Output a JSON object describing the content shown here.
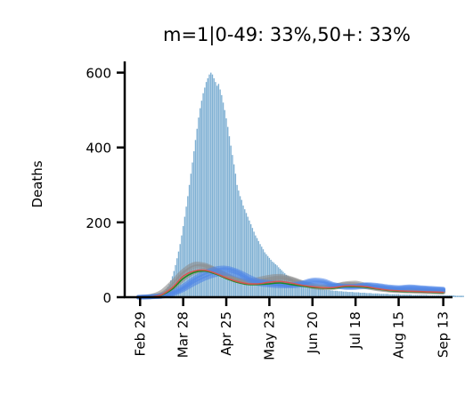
{
  "chart_data": {
    "type": "bar",
    "title": "m=1|0-49: 33%,50+: 33%",
    "xlabel": "",
    "ylabel": "Deaths",
    "ylim": [
      0,
      630
    ],
    "yticks": [
      0,
      200,
      400,
      600
    ],
    "ytick_labels": [
      "0",
      "200",
      "400",
      "600"
    ],
    "xlim": [
      "2020-02-19",
      "2020-09-19"
    ],
    "xticks": [
      "2020-02-29",
      "2020-03-28",
      "2020-04-25",
      "2020-05-23",
      "2020-06-20",
      "2020-07-18",
      "2020-08-15",
      "2020-09-13"
    ],
    "xtick_labels": [
      "Feb 29",
      "Mar 28",
      "Apr 25",
      "May 23",
      "Jun 20",
      "Jul 18",
      "Aug 15",
      "Sep 13"
    ],
    "colors": {
      "bars": "#7fb0d3",
      "green": "#1a8a1a",
      "gray": "#8c8c8c",
      "blue": "#4f86e8",
      "red": "#d9534f"
    },
    "daily_deaths": {
      "start": "2020-03-01",
      "values": [
        0,
        0,
        1,
        1,
        1,
        2,
        2,
        3,
        3,
        4,
        5,
        6,
        8,
        10,
        13,
        17,
        22,
        28,
        35,
        45,
        56,
        70,
        86,
        104,
        122,
        142,
        165,
        190,
        215,
        242,
        270,
        300,
        330,
        360,
        390,
        420,
        450,
        480,
        505,
        525,
        545,
        560,
        575,
        585,
        595,
        600,
        595,
        585,
        575,
        565,
        570,
        555,
        540,
        520,
        500,
        478,
        455,
        430,
        405,
        380,
        355,
        330,
        300,
        285,
        270,
        260,
        245,
        235,
        225,
        215,
        205,
        195,
        185,
        175,
        165,
        158,
        150,
        142,
        135,
        128,
        120,
        115,
        110,
        105,
        100,
        95,
        92,
        88,
        85,
        80,
        76,
        72,
        68,
        64,
        60,
        57,
        54,
        51,
        48,
        45,
        42,
        40,
        38,
        36,
        34,
        33,
        32,
        31,
        30,
        29,
        28,
        27,
        26,
        25,
        24,
        23,
        22,
        21,
        21,
        20,
        20,
        19,
        19,
        18,
        18,
        17,
        17,
        17,
        16,
        16,
        16,
        15,
        15,
        15,
        14,
        14,
        14,
        14,
        13,
        13,
        13,
        13,
        12,
        12,
        12,
        12,
        11,
        11,
        11,
        11,
        10,
        10,
        10,
        10,
        10,
        9,
        9,
        9,
        9,
        9,
        9,
        8,
        8,
        8,
        8,
        8,
        8,
        8,
        7,
        7,
        7,
        7,
        7,
        7,
        7,
        7,
        6,
        6,
        6,
        6,
        6,
        6,
        6,
        6,
        6,
        6,
        5,
        5,
        5,
        5,
        5,
        5,
        5,
        5,
        5,
        5,
        5,
        5,
        5,
        5,
        5,
        5,
        5,
        5,
        4,
        4,
        4,
        4,
        4,
        4
      ]
    },
    "series": [
      {
        "color": "#8c8c8c",
        "dates": [
          "2020-02-28",
          "2020-03-07",
          "2020-03-14",
          "2020-03-21",
          "2020-03-28",
          "2020-04-04",
          "2020-04-11",
          "2020-04-18",
          "2020-04-25",
          "2020-05-02",
          "2020-05-09",
          "2020-05-16",
          "2020-05-23",
          "2020-05-30",
          "2020-06-06",
          "2020-06-13",
          "2020-06-20",
          "2020-06-27",
          "2020-07-04",
          "2020-07-11",
          "2020-07-18",
          "2020-07-25",
          "2020-08-01",
          "2020-08-08",
          "2020-08-15",
          "2020-08-22",
          "2020-08-29",
          "2020-09-05",
          "2020-09-13"
        ],
        "values": [
          0,
          2,
          8,
          30,
          62,
          80,
          82,
          72,
          58,
          46,
          40,
          42,
          48,
          52,
          48,
          38,
          30,
          28,
          30,
          34,
          34,
          30,
          24,
          20,
          18,
          18,
          17,
          16,
          15
        ]
      },
      {
        "color": "#8c8c8c",
        "dates": [
          "2020-02-28",
          "2020-03-07",
          "2020-03-14",
          "2020-03-21",
          "2020-03-28",
          "2020-04-04",
          "2020-04-11",
          "2020-04-18",
          "2020-04-25",
          "2020-05-02",
          "2020-05-09",
          "2020-05-16",
          "2020-05-23",
          "2020-05-30",
          "2020-06-06",
          "2020-06-13",
          "2020-06-20",
          "2020-06-27",
          "2020-07-04",
          "2020-07-11",
          "2020-07-18",
          "2020-07-25",
          "2020-08-01",
          "2020-08-08",
          "2020-08-15",
          "2020-08-22",
          "2020-08-29",
          "2020-09-05",
          "2020-09-13"
        ],
        "values": [
          0,
          3,
          14,
          40,
          70,
          88,
          86,
          74,
          60,
          48,
          44,
          48,
          54,
          56,
          50,
          40,
          32,
          28,
          30,
          36,
          38,
          32,
          26,
          22,
          20,
          19,
          18,
          17,
          16
        ]
      },
      {
        "color": "#8c8c8c",
        "dates": [
          "2020-02-28",
          "2020-03-07",
          "2020-03-14",
          "2020-03-21",
          "2020-03-28",
          "2020-04-04",
          "2020-04-11",
          "2020-04-18",
          "2020-04-25",
          "2020-05-02",
          "2020-05-09",
          "2020-05-16",
          "2020-05-23",
          "2020-05-30",
          "2020-06-06",
          "2020-06-13",
          "2020-06-20",
          "2020-06-27",
          "2020-07-04",
          "2020-07-11",
          "2020-07-18",
          "2020-07-25",
          "2020-08-01",
          "2020-08-08",
          "2020-08-15",
          "2020-08-22",
          "2020-08-29",
          "2020-09-05",
          "2020-09-13"
        ],
        "values": [
          0,
          1,
          6,
          22,
          48,
          66,
          72,
          66,
          54,
          44,
          38,
          38,
          42,
          46,
          44,
          36,
          28,
          25,
          26,
          30,
          30,
          27,
          22,
          19,
          17,
          16,
          15,
          14,
          13
        ]
      },
      {
        "color": "#4f86e8",
        "dates": [
          "2020-02-28",
          "2020-03-07",
          "2020-03-14",
          "2020-03-21",
          "2020-03-28",
          "2020-04-04",
          "2020-04-11",
          "2020-04-18",
          "2020-04-25",
          "2020-05-02",
          "2020-05-09",
          "2020-05-16",
          "2020-05-23",
          "2020-05-30",
          "2020-06-06",
          "2020-06-13",
          "2020-06-20",
          "2020-06-27",
          "2020-07-04",
          "2020-07-11",
          "2020-07-18",
          "2020-07-25",
          "2020-08-01",
          "2020-08-08",
          "2020-08-15",
          "2020-08-22",
          "2020-08-29",
          "2020-09-05",
          "2020-09-13"
        ],
        "values": [
          0,
          1,
          3,
          10,
          24,
          44,
          58,
          70,
          74,
          66,
          50,
          40,
          36,
          34,
          32,
          36,
          42,
          40,
          32,
          28,
          28,
          32,
          30,
          26,
          24,
          26,
          24,
          22,
          20
        ]
      },
      {
        "color": "#4f86e8",
        "dates": [
          "2020-02-28",
          "2020-03-07",
          "2020-03-14",
          "2020-03-21",
          "2020-03-28",
          "2020-04-04",
          "2020-04-11",
          "2020-04-18",
          "2020-04-25",
          "2020-05-02",
          "2020-05-09",
          "2020-05-16",
          "2020-05-23",
          "2020-05-30",
          "2020-06-06",
          "2020-06-13",
          "2020-06-20",
          "2020-06-27",
          "2020-07-04",
          "2020-07-11",
          "2020-07-18",
          "2020-07-25",
          "2020-08-01",
          "2020-08-08",
          "2020-08-15",
          "2020-08-22",
          "2020-08-29",
          "2020-09-05",
          "2020-09-13"
        ],
        "values": [
          0,
          1,
          2,
          8,
          20,
          36,
          50,
          60,
          64,
          58,
          46,
          36,
          32,
          30,
          30,
          32,
          36,
          36,
          30,
          26,
          26,
          28,
          27,
          24,
          22,
          23,
          22,
          21,
          19
        ]
      },
      {
        "color": "#4f86e8",
        "dates": [
          "2020-02-28",
          "2020-03-07",
          "2020-03-14",
          "2020-03-21",
          "2020-03-28",
          "2020-04-04",
          "2020-04-11",
          "2020-04-18",
          "2020-04-25",
          "2020-05-02",
          "2020-05-09",
          "2020-05-16",
          "2020-05-23",
          "2020-05-30",
          "2020-06-06",
          "2020-06-13",
          "2020-06-20",
          "2020-06-27",
          "2020-07-04",
          "2020-07-11",
          "2020-07-18",
          "2020-07-25",
          "2020-08-01",
          "2020-08-08",
          "2020-08-15",
          "2020-08-22",
          "2020-08-29",
          "2020-09-05",
          "2020-09-13"
        ],
        "values": [
          0,
          2,
          5,
          14,
          30,
          50,
          66,
          76,
          78,
          70,
          56,
          44,
          40,
          36,
          34,
          38,
          46,
          44,
          34,
          30,
          30,
          34,
          32,
          28,
          26,
          28,
          26,
          24,
          22
        ]
      },
      {
        "color": "#1a8a1a",
        "dates": [
          "2020-02-28",
          "2020-03-07",
          "2020-03-14",
          "2020-03-21",
          "2020-03-28",
          "2020-04-04",
          "2020-04-11",
          "2020-04-18",
          "2020-04-25",
          "2020-05-02",
          "2020-05-09",
          "2020-05-16",
          "2020-05-23",
          "2020-05-30",
          "2020-06-06",
          "2020-06-13",
          "2020-06-20",
          "2020-06-27",
          "2020-07-04",
          "2020-07-11",
          "2020-07-18",
          "2020-07-25",
          "2020-08-01",
          "2020-08-08",
          "2020-08-15",
          "2020-08-22",
          "2020-08-29",
          "2020-09-05",
          "2020-09-13"
        ],
        "values": [
          0,
          1,
          6,
          22,
          50,
          66,
          70,
          62,
          50,
          40,
          34,
          34,
          36,
          38,
          34,
          30,
          26,
          24,
          24,
          28,
          28,
          26,
          22,
          18,
          16,
          15,
          14,
          13,
          12
        ]
      },
      {
        "color": "#d9534f",
        "dates": [
          "2020-02-28",
          "2020-03-07",
          "2020-03-14",
          "2020-03-21",
          "2020-03-28",
          "2020-04-04",
          "2020-04-11",
          "2020-04-18",
          "2020-04-25",
          "2020-05-02",
          "2020-05-09",
          "2020-05-16",
          "2020-05-23",
          "2020-05-30",
          "2020-06-06",
          "2020-06-13",
          "2020-06-20",
          "2020-06-27",
          "2020-07-04",
          "2020-07-11",
          "2020-07-18",
          "2020-07-25",
          "2020-08-01",
          "2020-08-08",
          "2020-08-15",
          "2020-08-22",
          "2020-08-29",
          "2020-09-05",
          "2020-09-13"
        ],
        "values": [
          0,
          1,
          7,
          26,
          56,
          70,
          72,
          64,
          52,
          42,
          36,
          36,
          40,
          42,
          38,
          32,
          28,
          25,
          26,
          30,
          30,
          28,
          23,
          19,
          17,
          16,
          15,
          14,
          13
        ]
      }
    ]
  }
}
